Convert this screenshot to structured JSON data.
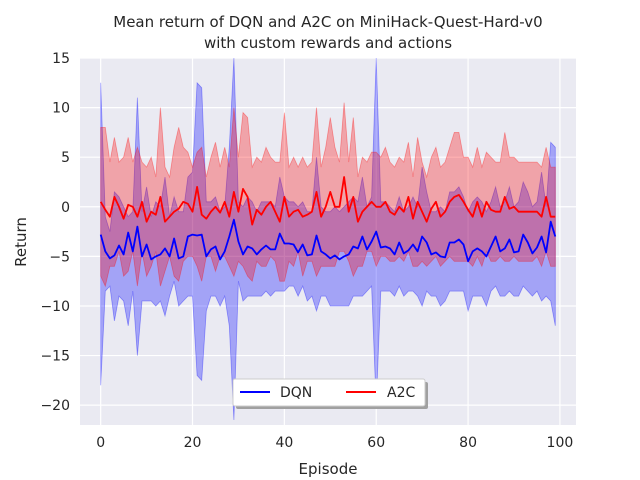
{
  "chart_data": {
    "type": "line",
    "title_line1": "Mean return of DQN and A2C on MiniHack-Quest-Hard-v0",
    "title_line2": "with custom rewards and actions",
    "xlabel": "Episode",
    "ylabel": "Return",
    "xlim": [
      -4.5,
      103.5
    ],
    "ylim": [
      -22,
      15
    ],
    "x_ticks": [
      0,
      20,
      40,
      60,
      80,
      100
    ],
    "x_tick_labels": [
      "0",
      "20",
      "40",
      "60",
      "80",
      "100"
    ],
    "y_ticks": [
      15,
      10,
      5,
      0,
      -5,
      -10,
      -15,
      -20
    ],
    "y_tick_labels": [
      "15",
      "10",
      "5",
      "0",
      "−5",
      "−10",
      "−15",
      "−20"
    ],
    "grid": true,
    "legend_position": "bottom-center",
    "background_color": "#eaeaf2",
    "series": [
      {
        "name": "DQN",
        "color": "#0000ff",
        "x_start": 0,
        "mean": [
          -2.8,
          -4.5,
          -5.2,
          -4.9,
          -3.9,
          -4.8,
          -2.6,
          -4.5,
          -2.0,
          -5.0,
          -3.8,
          -5.3,
          -5.0,
          -4.8,
          -4.2,
          -5.0,
          -3.2,
          -5.2,
          -5.0,
          -3.0,
          -2.8,
          -2.9,
          -2.8,
          -5.0,
          -4.3,
          -4.0,
          -5.3,
          -4.5,
          -3.0,
          -1.3,
          -3.5,
          -4.8,
          -4.0,
          -4.2,
          -4.8,
          -4.3,
          -3.9,
          -4.3,
          -4.3,
          -2.7,
          -3.7,
          -3.7,
          -3.8,
          -4.6,
          -3.8,
          -4.9,
          -4.8,
          -2.9,
          -4.5,
          -4.8,
          -5.2,
          -4.9,
          -5.3,
          -5.0,
          -4.8,
          -4.0,
          -4.2,
          -3.0,
          -4.3,
          -3.5,
          -2.5,
          -4.1,
          -4.0,
          -4.2,
          -4.8,
          -3.6,
          -4.7,
          -4.4,
          -3.8,
          -4.5,
          -3.0,
          -3.6,
          -4.8,
          -4.6,
          -5.0,
          -5.1,
          -3.6,
          -3.6,
          -3.3,
          -3.8,
          -5.5,
          -4.5,
          -4.2,
          -4.5,
          -5.0,
          -4.0,
          -3.0,
          -4.5,
          -4.2,
          -3.3,
          -4.6,
          -4.5,
          -2.8,
          -3.6,
          -4.7,
          -4.1,
          -3.0,
          -4.6,
          -1.5,
          -3.0
        ],
        "upper": [
          12.5,
          -1.0,
          -2.5,
          1.5,
          1.0,
          0.0,
          -1.0,
          -0.5,
          11.0,
          -0.5,
          2.0,
          -1.0,
          0.5,
          0.0,
          3.0,
          -1.0,
          1.0,
          -0.5,
          -0.5,
          3.0,
          3.5,
          12.5,
          12.0,
          0.5,
          0.5,
          1.0,
          -0.5,
          0.0,
          6.0,
          15.0,
          0.5,
          0.0,
          1.0,
          0.5,
          -0.5,
          0.5,
          0.5,
          0.5,
          0.0,
          3.0,
          1.0,
          0.5,
          0.5,
          0.0,
          0.5,
          -0.5,
          -0.5,
          5.0,
          0.0,
          -0.5,
          -0.5,
          0.0,
          -0.5,
          0.0,
          0.5,
          1.0,
          0.5,
          3.0,
          0.0,
          1.0,
          15.0,
          0.5,
          0.5,
          0.0,
          -0.5,
          1.0,
          -0.5,
          0.0,
          1.0,
          0.0,
          4.0,
          1.5,
          -0.5,
          -0.5,
          0.0,
          -0.5,
          1.5,
          1.5,
          2.0,
          1.0,
          -0.5,
          0.5,
          1.0,
          0.5,
          -0.5,
          0.5,
          2.0,
          0.0,
          0.5,
          2.0,
          0.0,
          0.5,
          2.5,
          1.5,
          0.0,
          0.5,
          3.5,
          0.0,
          6.5,
          6.0
        ],
        "lower": [
          -18.0,
          -8.5,
          -8.0,
          -11.5,
          -9.0,
          -9.5,
          -12.0,
          -8.5,
          -15.0,
          -9.5,
          -9.5,
          -9.5,
          -10.0,
          -9.5,
          -11.0,
          -9.0,
          -7.5,
          -10.0,
          -9.5,
          -9.0,
          -9.0,
          -17.0,
          -17.5,
          -10.5,
          -9.0,
          -9.0,
          -10.0,
          -9.0,
          -12.0,
          -21.5,
          -7.5,
          -9.5,
          -9.0,
          -9.0,
          -9.0,
          -9.0,
          -8.5,
          -9.0,
          -8.5,
          -8.5,
          -8.5,
          -8.0,
          -8.0,
          -9.0,
          -8.0,
          -9.5,
          -9.0,
          -10.5,
          -9.0,
          -9.0,
          -10.0,
          -10.0,
          -10.0,
          -10.0,
          -10.0,
          -9.0,
          -9.0,
          -9.0,
          -8.5,
          -8.0,
          -20.0,
          -8.5,
          -8.5,
          -8.5,
          -9.0,
          -8.0,
          -9.0,
          -8.5,
          -8.5,
          -9.0,
          -10.0,
          -8.5,
          -9.0,
          -9.0,
          -10.0,
          -9.5,
          -8.5,
          -8.5,
          -8.5,
          -8.5,
          -10.5,
          -9.0,
          -9.0,
          -9.0,
          -10.0,
          -8.5,
          -8.0,
          -9.0,
          -9.0,
          -8.5,
          -9.0,
          -9.0,
          -8.0,
          -8.5,
          -9.0,
          -8.5,
          -9.5,
          -9.0,
          -9.5,
          -12.0
        ]
      },
      {
        "name": "A2C",
        "color": "#ff0000",
        "x_start": 0,
        "mean": [
          0.5,
          -0.3,
          -1.0,
          1.0,
          0.0,
          -1.2,
          0.2,
          0.0,
          -1.0,
          0.5,
          -1.5,
          -0.5,
          -0.8,
          1.0,
          -1.5,
          -1.0,
          -0.5,
          -0.2,
          0.5,
          0.3,
          -0.5,
          2.0,
          -0.8,
          -1.2,
          -0.5,
          0.0,
          -0.6,
          0.5,
          -1.0,
          1.5,
          -0.5,
          1.8,
          1.0,
          -1.8,
          -0.3,
          -0.8,
          0.0,
          0.5,
          -0.5,
          -1.5,
          1.0,
          -1.0,
          -0.5,
          -0.3,
          -1.0,
          -0.8,
          -0.5,
          1.5,
          -1.0,
          0.0,
          1.5,
          0.0,
          0.0,
          3.0,
          -0.5,
          1.0,
          -1.5,
          -0.5,
          0.0,
          0.5,
          0.0,
          0.0,
          0.5,
          -0.5,
          -0.8,
          0.0,
          -0.5,
          1.0,
          -1.2,
          0.5,
          -0.5,
          -1.5,
          -0.2,
          0.5,
          -1.0,
          -0.5,
          0.5,
          1.0,
          1.2,
          0.5,
          -0.3,
          -1.0,
          0.5,
          -1.0,
          0.5,
          -0.3,
          -0.5,
          -0.5,
          1.0,
          -0.2,
          0.0,
          -0.5,
          -0.5,
          -0.5,
          -0.5,
          -0.5,
          -1.0,
          1.0,
          -1.0,
          -1.0
        ],
        "upper": [
          8.0,
          8.0,
          4.5,
          7.0,
          4.5,
          5.0,
          7.0,
          4.5,
          6.0,
          4.5,
          4.0,
          5.0,
          3.0,
          10.0,
          4.0,
          3.0,
          6.0,
          8.0,
          6.0,
          5.5,
          4.0,
          5.5,
          6.0,
          3.0,
          5.0,
          6.5,
          4.0,
          6.0,
          4.0,
          10.0,
          5.0,
          9.5,
          9.0,
          4.0,
          5.0,
          4.5,
          6.0,
          5.0,
          4.5,
          4.5,
          9.5,
          4.0,
          5.0,
          4.0,
          5.0,
          4.0,
          4.5,
          10.0,
          4.0,
          6.0,
          9.0,
          6.0,
          4.5,
          10.5,
          4.5,
          9.0,
          3.0,
          5.0,
          4.5,
          5.5,
          5.5,
          5.0,
          6.0,
          4.5,
          4.0,
          5.0,
          4.5,
          6.5,
          3.0,
          7.0,
          4.5,
          3.0,
          5.0,
          6.0,
          4.0,
          4.5,
          6.0,
          7.5,
          7.5,
          5.0,
          5.0,
          4.0,
          6.0,
          4.0,
          5.5,
          5.0,
          4.5,
          4.5,
          7.5,
          5.0,
          5.0,
          4.5,
          4.5,
          4.5,
          4.5,
          4.5,
          4.0,
          6.0,
          4.0,
          4.0
        ],
        "lower": [
          -7.0,
          -8.0,
          -6.0,
          -6.0,
          -4.5,
          -7.0,
          -6.5,
          -4.5,
          -8.0,
          -4.5,
          -7.0,
          -6.0,
          -4.5,
          -8.0,
          -6.5,
          -5.0,
          -7.0,
          -7.5,
          -5.5,
          -5.0,
          -5.0,
          -6.0,
          -7.5,
          -5.0,
          -5.0,
          -6.5,
          -5.0,
          -5.0,
          -6.0,
          -7.0,
          -5.5,
          -6.0,
          -7.0,
          -7.5,
          -5.5,
          -6.0,
          -6.0,
          -5.0,
          -5.5,
          -7.5,
          -7.5,
          -5.5,
          -6.0,
          -4.5,
          -7.0,
          -5.5,
          -5.5,
          -7.0,
          -6.0,
          -6.0,
          -6.0,
          -6.0,
          -4.5,
          -4.5,
          -5.5,
          -7.0,
          -6.0,
          -6.0,
          -4.5,
          -4.5,
          -6.0,
          -5.0,
          -5.0,
          -5.5,
          -5.5,
          -5.0,
          -5.5,
          -4.5,
          -6.0,
          -6.0,
          -5.5,
          -6.0,
          -5.5,
          -5.0,
          -6.0,
          -5.5,
          -5.0,
          -5.5,
          -5.5,
          -5.5,
          -5.5,
          -6.0,
          -5.0,
          -6.0,
          -4.5,
          -5.5,
          -5.5,
          -5.0,
          -5.5,
          -5.5,
          -5.0,
          -5.5,
          -5.5,
          -5.5,
          -5.5,
          -5.0,
          -6.0,
          -4.5,
          -6.0,
          -6.0
        ]
      }
    ]
  }
}
